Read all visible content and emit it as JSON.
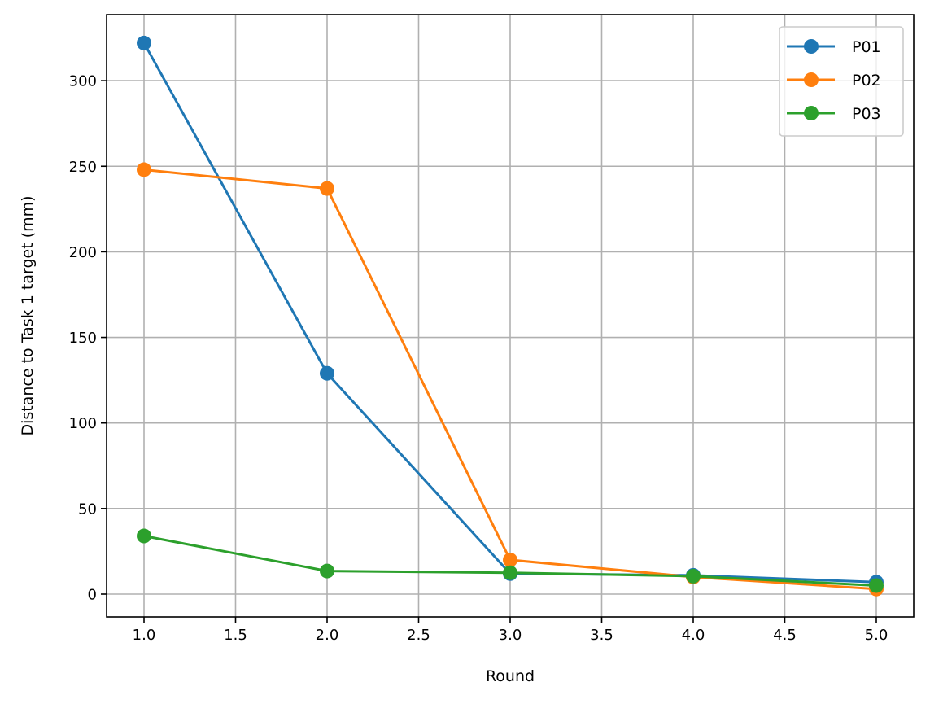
{
  "chart_data": {
    "type": "line",
    "title": "",
    "xlabel": "Round",
    "ylabel": "Distance to Task 1 target (mm)",
    "xlim": [
      0.8,
      5.2
    ],
    "ylim": [
      -12.5,
      338
    ],
    "grid": true,
    "legend_position": "upper right",
    "x": [
      1,
      2,
      3,
      4,
      5
    ],
    "xticks": [
      1.0,
      1.5,
      2.0,
      2.5,
      3.0,
      3.5,
      4.0,
      4.5,
      5.0
    ],
    "xtick_labels": [
      "1.0",
      "1.5",
      "2.0",
      "2.5",
      "3.0",
      "3.5",
      "4.0",
      "4.5",
      "5.0"
    ],
    "yticks": [
      0,
      50,
      100,
      150,
      200,
      250,
      300
    ],
    "ytick_labels": [
      "0",
      "50",
      "100",
      "150",
      "200",
      "250",
      "300"
    ],
    "series": [
      {
        "name": "P01",
        "color": "#1f77b4",
        "values": [
          322,
          129,
          12,
          11,
          7
        ]
      },
      {
        "name": "P02",
        "color": "#ff7f0e",
        "values": [
          248,
          237,
          20,
          10,
          3
        ]
      },
      {
        "name": "P03",
        "color": "#2ca02c",
        "values": [
          34,
          13.5,
          12.5,
          10.5,
          5
        ]
      }
    ]
  }
}
